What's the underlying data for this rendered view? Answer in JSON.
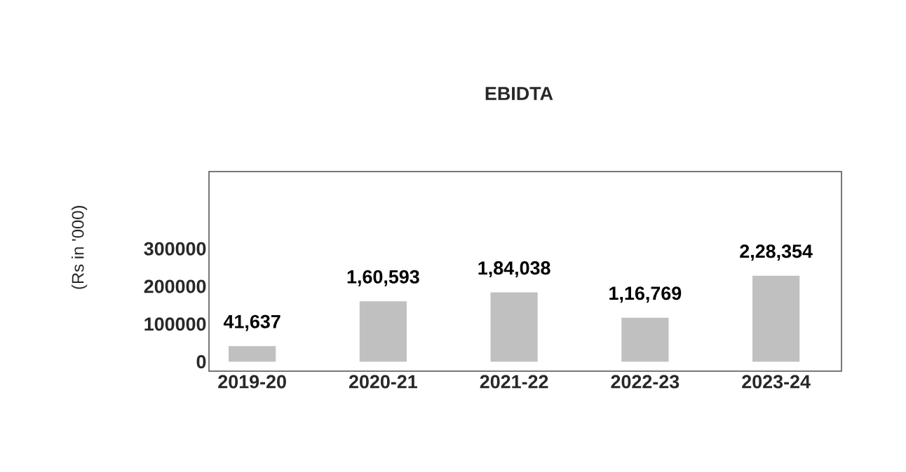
{
  "chart_data": {
    "type": "bar",
    "title": "EBIDTA",
    "ylabel": "(Rs in '000)",
    "categories": [
      "2019-20",
      "2020-21",
      "2021-22",
      "2022-23",
      "2023-24"
    ],
    "values": [
      41637,
      160593,
      184038,
      116769,
      228354
    ],
    "value_labels": [
      "41,637",
      "1,60,593",
      "1,84,038",
      "1,16,769",
      "2,28,354"
    ],
    "color": "#c0c0c0",
    "ylim": [
      -25000,
      505000
    ],
    "yticks": [
      0,
      100000,
      200000,
      300000
    ]
  }
}
